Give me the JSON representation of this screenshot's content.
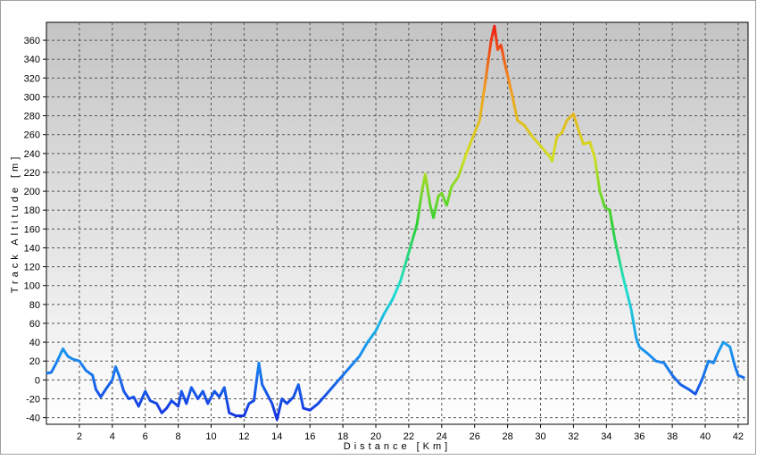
{
  "chart_data": {
    "type": "line",
    "xlabel": "Distance [Km]",
    "ylabel": "Track Altitude [m]",
    "xlim": [
      0,
      42.6
    ],
    "ylim": [
      -47,
      379
    ],
    "xticks": [
      2,
      4,
      6,
      8,
      10,
      12,
      14,
      16,
      18,
      20,
      22,
      24,
      26,
      28,
      30,
      32,
      34,
      36,
      38,
      40,
      42
    ],
    "yticks": [
      -40,
      -20,
      0,
      20,
      40,
      60,
      80,
      100,
      120,
      140,
      160,
      180,
      200,
      220,
      240,
      260,
      280,
      300,
      320,
      340,
      360
    ],
    "grid": true,
    "colorscale": [
      "#1530e0",
      "#1a90f0",
      "#20e0d0",
      "#30d030",
      "#d0e020",
      "#f0a020",
      "#f02010"
    ],
    "x": [
      0,
      0.3,
      0.6,
      1,
      1.3,
      1.6,
      2,
      2.4,
      2.8,
      3,
      3.3,
      3.6,
      4,
      4.2,
      4.4,
      4.7,
      5,
      5.3,
      5.6,
      6,
      6.3,
      6.7,
      7,
      7.3,
      7.6,
      8,
      8.2,
      8.5,
      8.8,
      9.2,
      9.5,
      9.8,
      10.2,
      10.5,
      10.8,
      11.1,
      11.5,
      12,
      12.3,
      12.6,
      12.9,
      13.1,
      13.4,
      13.7,
      14,
      14.3,
      14.6,
      15,
      15.3,
      15.6,
      16,
      16.5,
      17,
      17.5,
      18,
      18.5,
      19,
      19.5,
      20,
      20.5,
      21,
      21.5,
      22,
      22.5,
      22.8,
      23,
      23.3,
      23.5,
      23.8,
      24,
      24.3,
      24.6,
      25,
      25.5,
      26,
      26.3,
      26.6,
      27,
      27.2,
      27.4,
      27.6,
      27.9,
      28.3,
      28.6,
      29,
      29.5,
      30,
      30.5,
      30.7,
      31,
      31.3,
      31.6,
      32,
      32.3,
      32.6,
      33,
      33.3,
      33.6,
      33.9,
      34.2,
      34.5,
      35,
      35.5,
      35.8,
      36,
      36.5,
      37,
      37.5,
      38,
      38.5,
      39,
      39.4,
      39.8,
      40.2,
      40.5,
      40.8,
      41.1,
      41.5,
      41.8,
      42,
      42.4
    ],
    "values": [
      7,
      8,
      18,
      33,
      25,
      22,
      20,
      10,
      5,
      -10,
      -18,
      -10,
      0,
      14,
      5,
      -12,
      -20,
      -18,
      -28,
      -12,
      -22,
      -25,
      -35,
      -30,
      -22,
      -28,
      -12,
      -25,
      -8,
      -20,
      -12,
      -25,
      -12,
      -18,
      -8,
      -35,
      -38,
      -38,
      -25,
      -22,
      18,
      -5,
      -15,
      -25,
      -42,
      -20,
      -25,
      -18,
      -5,
      -30,
      -32,
      -25,
      -15,
      -5,
      5,
      15,
      25,
      40,
      52,
      70,
      85,
      105,
      135,
      165,
      200,
      218,
      185,
      172,
      195,
      198,
      185,
      205,
      215,
      240,
      262,
      275,
      310,
      360,
      375,
      350,
      355,
      330,
      300,
      275,
      270,
      258,
      248,
      238,
      232,
      258,
      262,
      275,
      282,
      265,
      250,
      252,
      235,
      200,
      183,
      180,
      150,
      110,
      75,
      45,
      35,
      28,
      20,
      18,
      5,
      -5,
      -10,
      -15,
      0,
      20,
      18,
      30,
      40,
      35,
      15,
      5,
      2
    ]
  }
}
